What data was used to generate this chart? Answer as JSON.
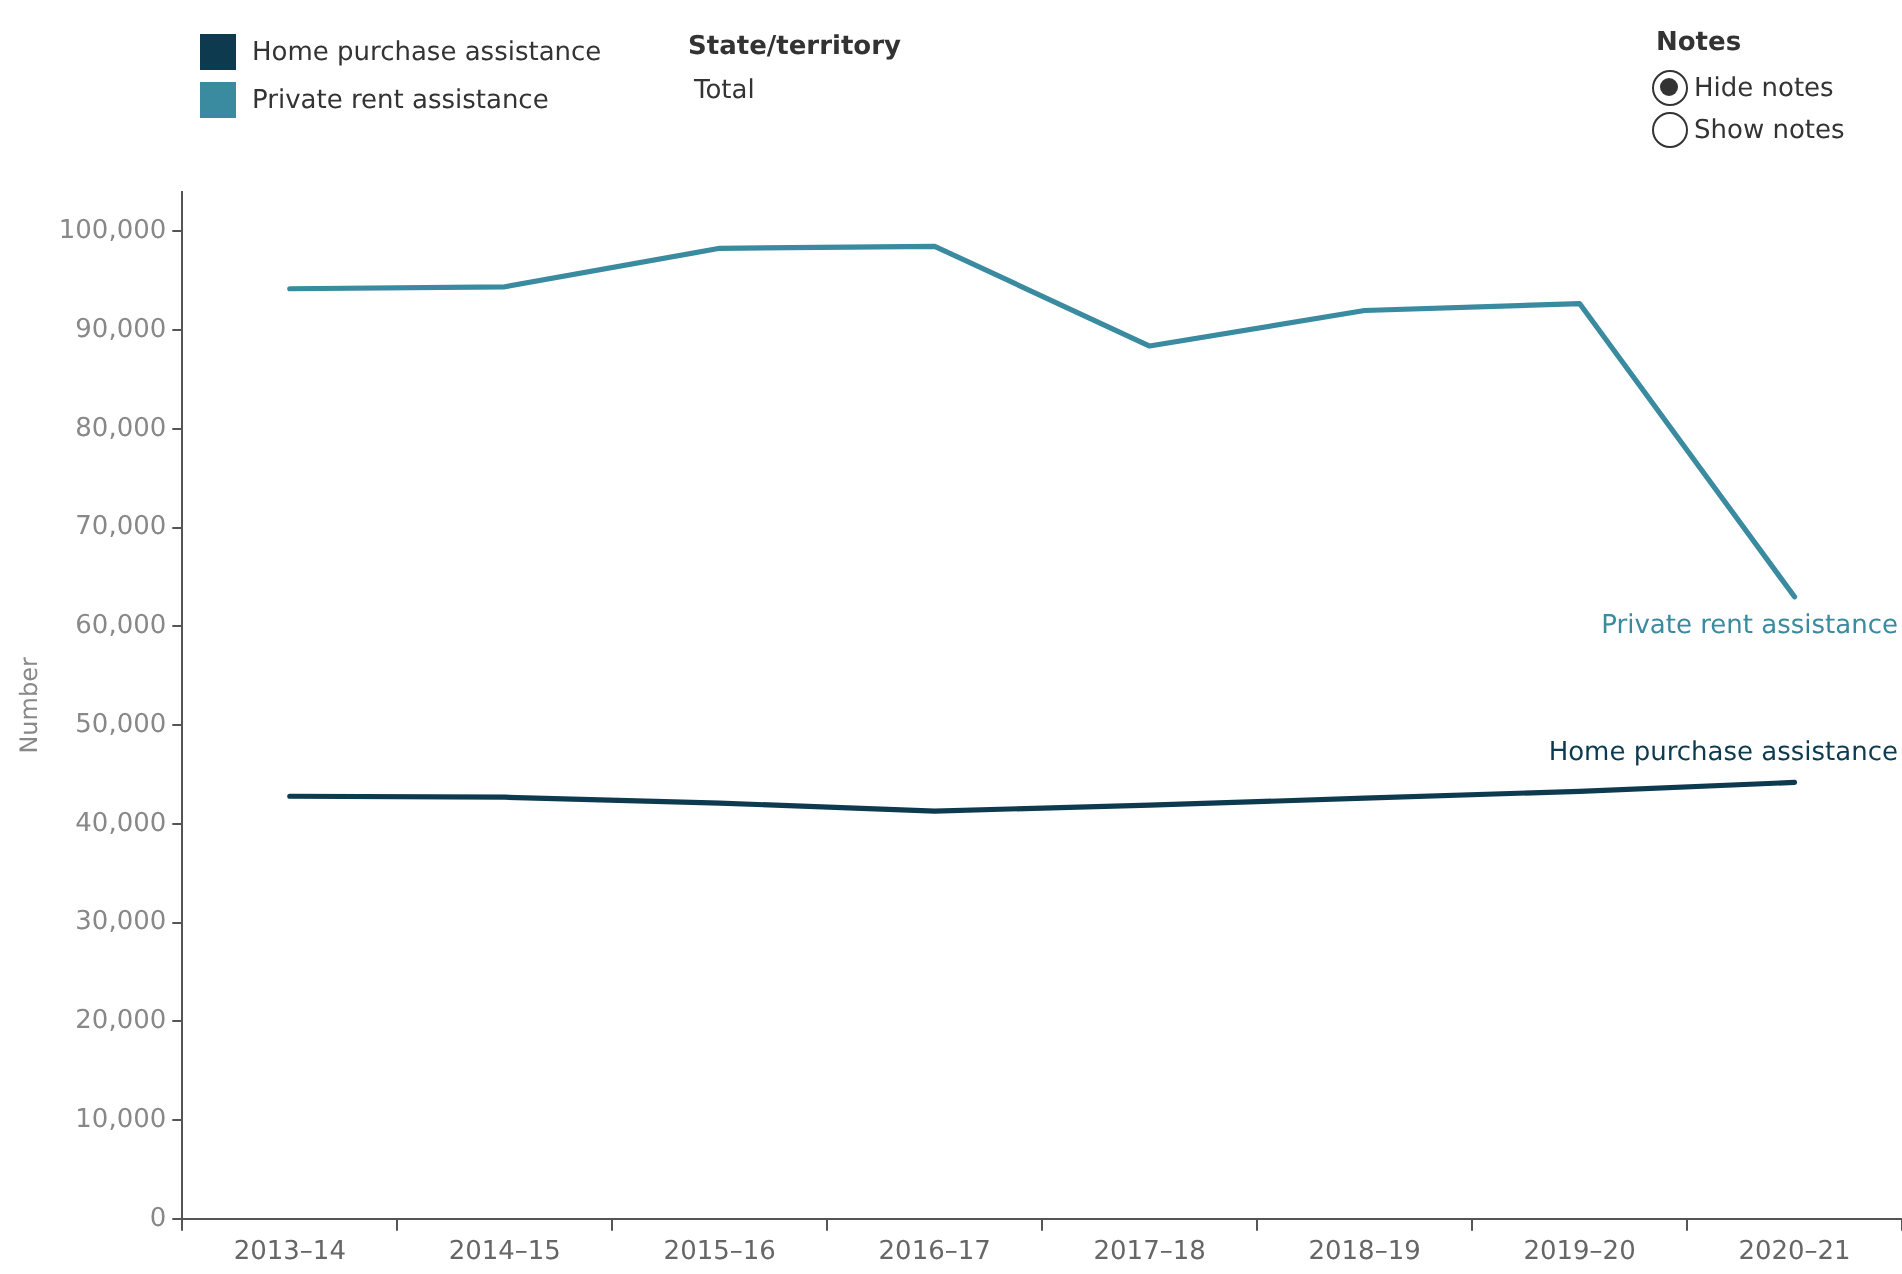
{
  "chart_data": {
    "type": "line",
    "ylabel": "Number",
    "categories": [
      "2013–14",
      "2014–15",
      "2015–16",
      "2016–17",
      "2017–18",
      "2018–19",
      "2019–20",
      "2020–21"
    ],
    "series": [
      {
        "name": "Home purchase assistance",
        "color": "#0e3a50",
        "values": [
          42800,
          42700,
          42100,
          41300,
          41900,
          42600,
          43300,
          44200
        ]
      },
      {
        "name": "Private rent assistance",
        "color": "#3a8aa0",
        "values": [
          94200,
          94400,
          98300,
          98500,
          88400,
          92000,
          92700,
          63000
        ]
      }
    ],
    "ylim": [
      0,
      104000
    ],
    "yticks": [
      0,
      {
        "value": 10000,
        "label": "10,000"
      },
      {
        "value": 20000,
        "label": "20,000"
      },
      {
        "value": 30000,
        "label": "30,000"
      },
      {
        "value": 40000,
        "label": "40,000"
      },
      {
        "value": 50000,
        "label": "50,000"
      },
      {
        "value": 60000,
        "label": "60,000"
      },
      {
        "value": 70000,
        "label": "70,000"
      },
      {
        "value": 80000,
        "label": "80,000"
      },
      {
        "value": 90000,
        "label": "90,000"
      },
      {
        "value": 100000,
        "label": "100,000"
      }
    ],
    "grid": false,
    "legend": "top left",
    "marker": "none",
    "line_style": "solid",
    "annotations": [
      "State/territory",
      "Total",
      "Notes",
      "Hide notes",
      "Show notes"
    ]
  }
}
